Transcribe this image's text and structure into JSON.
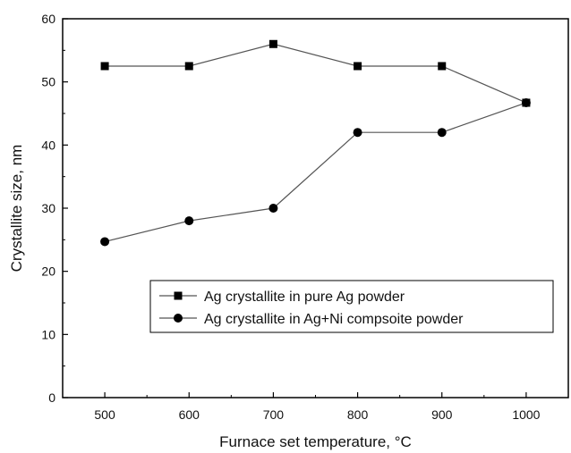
{
  "chart_data": {
    "type": "line",
    "xlabel": "Furnace set temperature, °C",
    "ylabel": "Crystallite size, nm",
    "xlim": [
      450,
      1050
    ],
    "ylim": [
      0,
      60
    ],
    "xticks": [
      500,
      600,
      700,
      800,
      900,
      1000
    ],
    "yticks": [
      0,
      10,
      20,
      30,
      40,
      50,
      60
    ],
    "grid": false,
    "legend_position": "lower-right",
    "x": [
      500,
      600,
      700,
      800,
      900,
      1000
    ],
    "series": [
      {
        "name": "Ag crystallite in pure Ag powder",
        "marker": "square",
        "values": [
          52.5,
          52.5,
          56,
          52.5,
          52.5,
          46.7
        ]
      },
      {
        "name": "Ag crystallite in Ag+Ni compsoite powder",
        "marker": "circle",
        "values": [
          24.7,
          28,
          30,
          42,
          42,
          46.7
        ]
      }
    ],
    "colors": {
      "marker": "#000000",
      "line": "#555555"
    }
  }
}
